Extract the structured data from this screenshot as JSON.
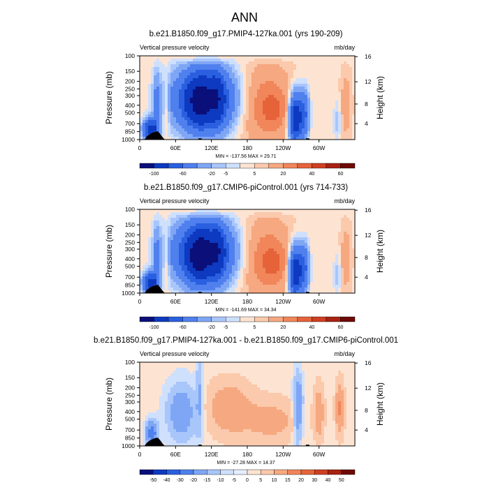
{
  "page_title": "ANN",
  "colors": {
    "neg": [
      "#0a0f7a",
      "#0d3ac0",
      "#2a5fe0",
      "#4f80ee",
      "#7fa6f5",
      "#a9c6fb",
      "#cfe0fd"
    ],
    "pos": [
      "#fde4d2",
      "#fbc9ac",
      "#f6a880",
      "#f1865a",
      "#e6633a",
      "#cf3f21",
      "#a82211",
      "#6e0a05"
    ],
    "topography": "#000000"
  },
  "chart_data": [
    {
      "type": "heatmap",
      "title": "b.e21.B1850.f09_g17.PMIP4-127ka.001 (yrs 190-209)",
      "left_label": "Vertical pressure velocity",
      "right_label": "mb/day",
      "ylabel": "Pressure (mb)",
      "y2label": "Height (km)",
      "xticks": [
        "0",
        "60E",
        "120E",
        "180",
        "120W",
        "60W"
      ],
      "yticks": [
        "100",
        "150",
        "200",
        "250",
        "300",
        "400",
        "500",
        "700",
        "850",
        "1000"
      ],
      "y2ticks": [
        "16",
        "12",
        "8",
        "4"
      ],
      "minmax": "MIN = -137.56  MAX =  29.71",
      "colorbar": [
        "-100",
        "-60",
        "-20",
        "-5",
        "5",
        "20",
        "40",
        "60"
      ]
    },
    {
      "type": "heatmap",
      "title": "b.e21.B1850.f09_g17.CMIP6-piControl.001 (yrs 714-733)",
      "left_label": "Vertical pressure velocity",
      "right_label": "mb/day",
      "ylabel": "Pressure (mb)",
      "y2label": "Height (km)",
      "xticks": [
        "0",
        "60E",
        "120E",
        "180",
        "120W",
        "60W"
      ],
      "yticks": [
        "100",
        "150",
        "200",
        "250",
        "300",
        "400",
        "500",
        "700",
        "850",
        "1000"
      ],
      "y2ticks": [
        "16",
        "12",
        "8",
        "4"
      ],
      "minmax": "MIN = -141.69  MAX =  34.34",
      "colorbar": [
        "-100",
        "-60",
        "-20",
        "-5",
        "5",
        "20",
        "40",
        "60"
      ]
    },
    {
      "type": "heatmap",
      "title": "b.e21.B1850.f09_g17.PMIP4-127ka.001 - b.e21.B1850.f09_g17.CMIP6-piControl.001",
      "left_label": "Vertical pressure velocity",
      "right_label": "mb/day",
      "ylabel": "Pressure (mb)",
      "y2label": "Height (km)",
      "xticks": [
        "0",
        "60E",
        "120E",
        "180",
        "120W",
        "60W"
      ],
      "yticks": [
        "100",
        "150",
        "200",
        "250",
        "300",
        "400",
        "500",
        "700",
        "850",
        "1000"
      ],
      "y2ticks": [
        "16",
        "12",
        "8",
        "4"
      ],
      "minmax": "MIN = -27.28  MAX =  14.37",
      "colorbar": [
        "-50",
        "-40",
        "-30",
        "-20",
        "-15",
        "-10",
        "-5",
        "0",
        "5",
        "10",
        "15",
        "20",
        "30",
        "40",
        "50"
      ]
    }
  ]
}
